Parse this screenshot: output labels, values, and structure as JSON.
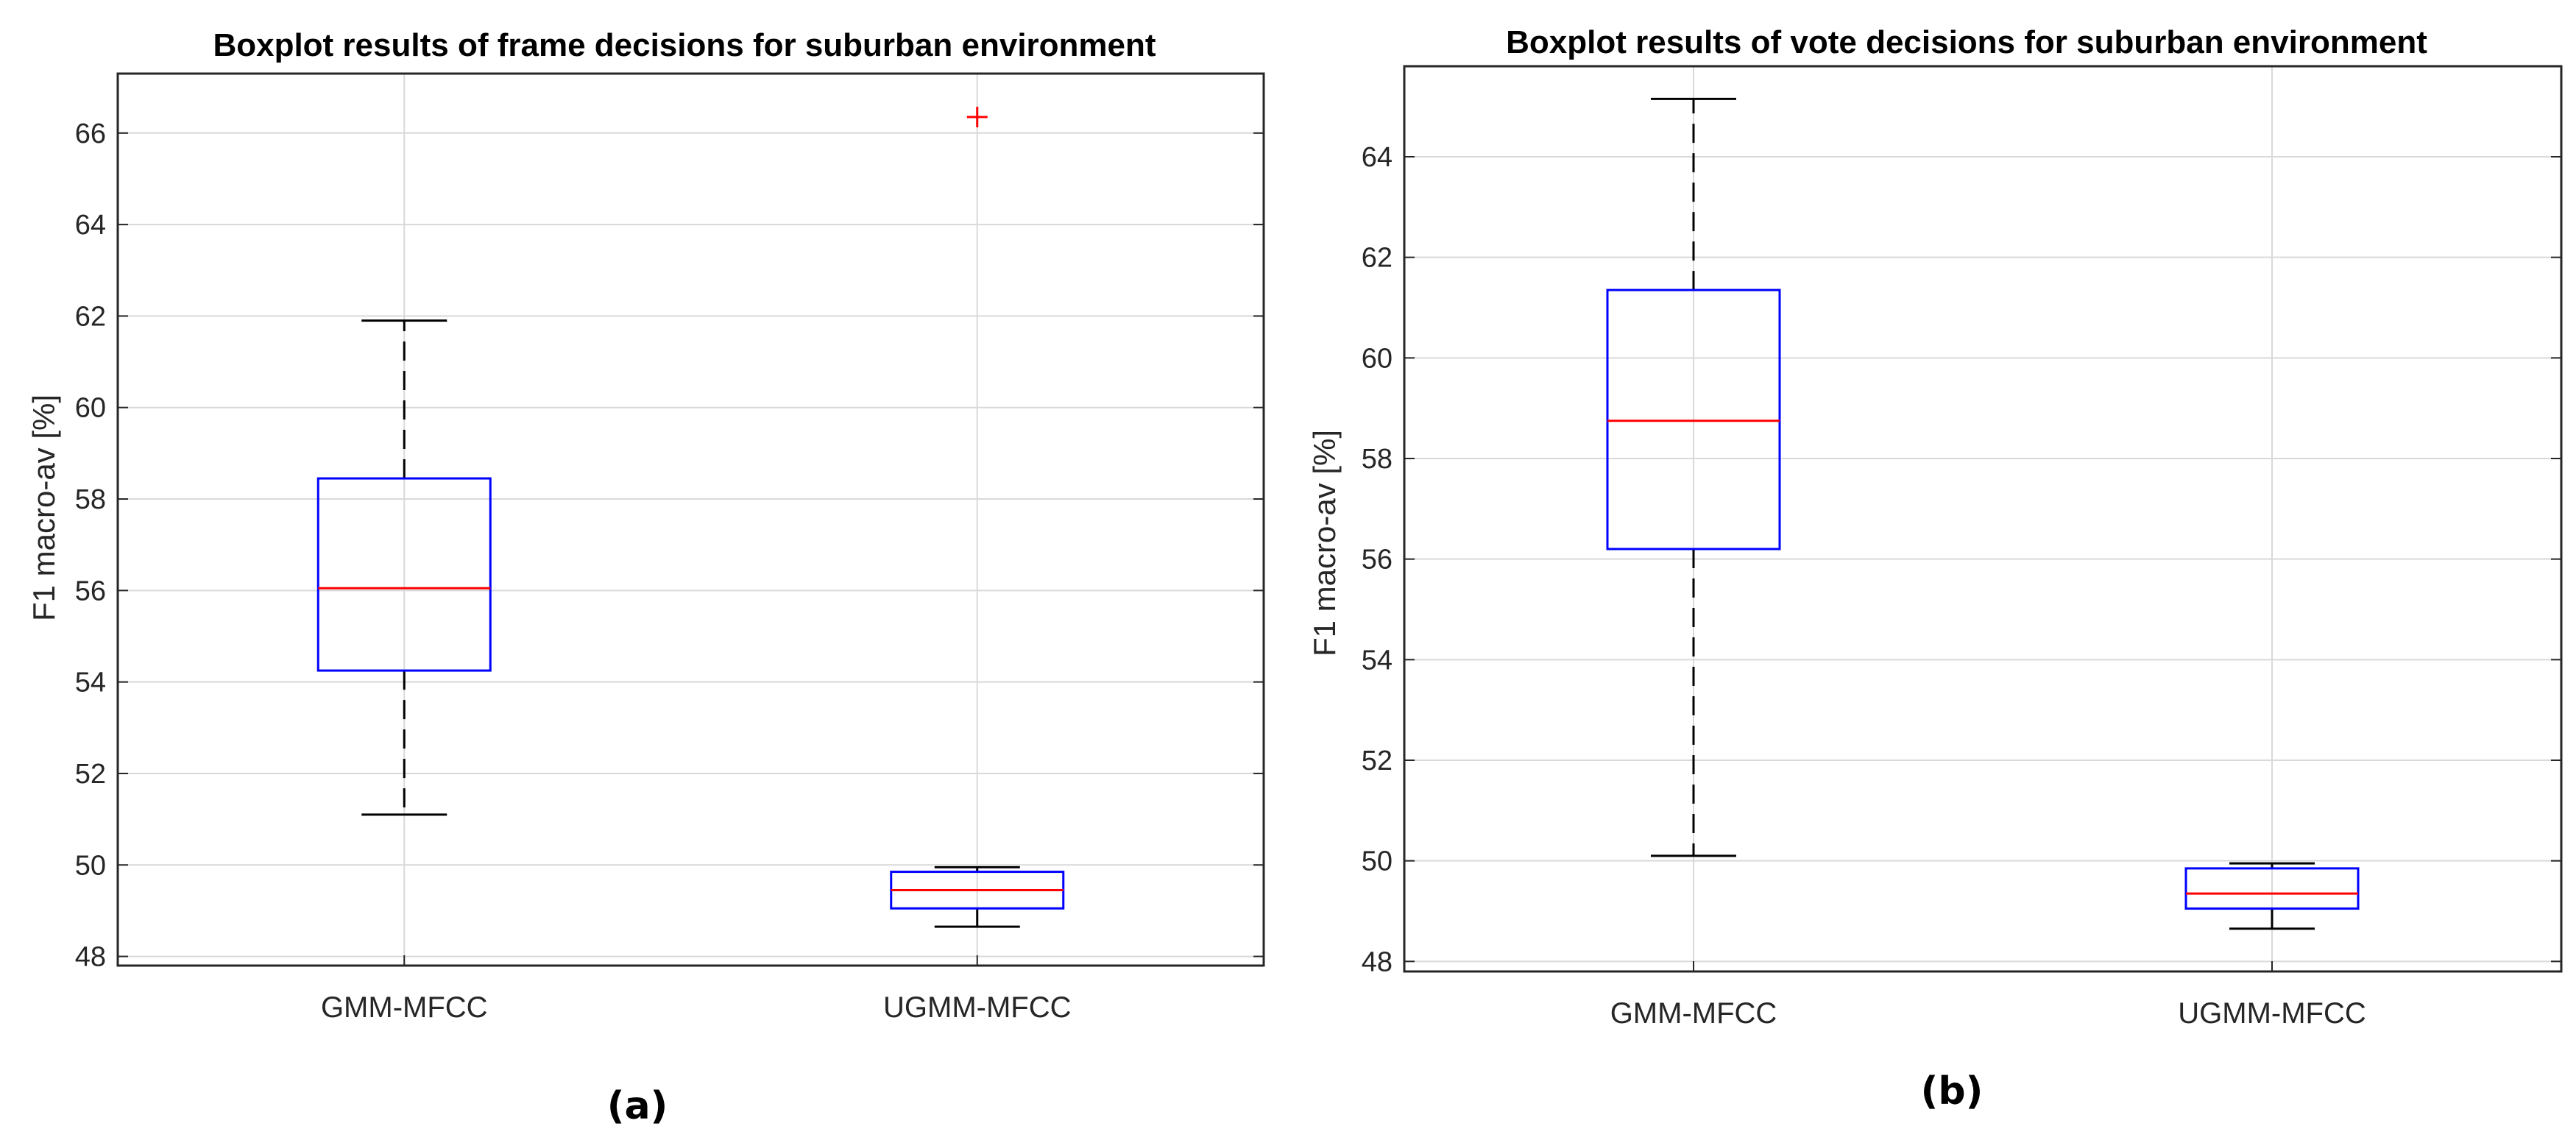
{
  "chart_data": [
    {
      "type": "box",
      "title": "Boxplot results of frame decisions for  suburban environment",
      "ylabel": "F1 macro-av [%]",
      "xlabel": "",
      "panel_label": "(a)",
      "ylim": [
        47.8,
        67.3
      ],
      "yticks": [
        48,
        50,
        52,
        54,
        56,
        58,
        60,
        62,
        64,
        66
      ],
      "grid": true,
      "categories": [
        "GMM-MFCC",
        "UGMM-MFCC"
      ],
      "boxes": [
        {
          "name": "GMM-MFCC",
          "whisker_low": 51.1,
          "q1": 54.25,
          "median": 56.05,
          "q3": 58.45,
          "whisker_high": 61.9,
          "outliers": []
        },
        {
          "name": "UGMM-MFCC",
          "whisker_low": 48.65,
          "q1": 49.05,
          "median": 49.45,
          "q3": 49.85,
          "whisker_high": 49.95,
          "outliers": [
            66.35
          ]
        }
      ],
      "colors": {
        "box": "#0000ff",
        "median": "#ff0000",
        "whisker": "#000000",
        "outlier": "#ff0000",
        "grid": "#d9d9d9"
      }
    },
    {
      "type": "box",
      "title": "Boxplot results of vote decisions for  suburban environment",
      "ylabel": "F1 macro-av [%]",
      "xlabel": "",
      "panel_label": "(b)",
      "ylim": [
        47.8,
        65.8
      ],
      "yticks": [
        48,
        50,
        52,
        54,
        56,
        58,
        60,
        62,
        64
      ],
      "grid": true,
      "categories": [
        "GMM-MFCC",
        "UGMM-MFCC"
      ],
      "boxes": [
        {
          "name": "GMM-MFCC",
          "whisker_low": 50.1,
          "q1": 56.2,
          "median": 58.75,
          "q3": 61.35,
          "whisker_high": 65.15,
          "outliers": []
        },
        {
          "name": "UGMM-MFCC",
          "whisker_low": 48.65,
          "q1": 49.05,
          "median": 49.35,
          "q3": 49.85,
          "whisker_high": 49.95,
          "outliers": []
        }
      ],
      "colors": {
        "box": "#0000ff",
        "median": "#ff0000",
        "whisker": "#000000",
        "outlier": "#ff0000",
        "grid": "#d9d9d9"
      }
    }
  ]
}
